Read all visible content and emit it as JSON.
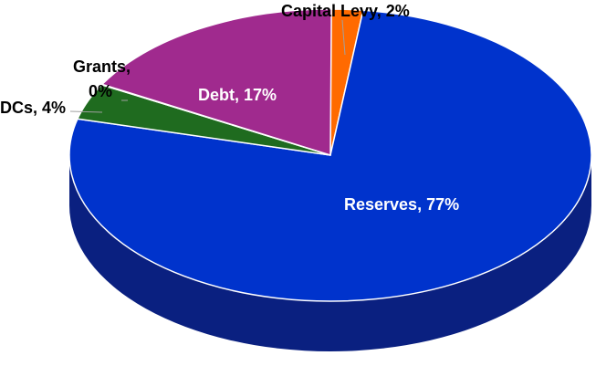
{
  "chart_data": {
    "type": "pie",
    "style": "3d",
    "slices": [
      {
        "name": "Reserves",
        "label": "Reserves, 77%",
        "value": 77,
        "color": "#0033cc",
        "side_color": "#0a2080"
      },
      {
        "name": "DCs",
        "label": "DCs, 4%",
        "value": 4,
        "color": "#1f6b1f",
        "side_color": "#124012"
      },
      {
        "name": "Grants",
        "label_lines": [
          "Grants,",
          "0%"
        ],
        "value": 0,
        "color": "#7a2a8a",
        "side_color": "#4a1856"
      },
      {
        "name": "Debt",
        "label": "Debt, 17%",
        "value": 17,
        "color": "#a02a8e",
        "side_color": "#5c1852"
      },
      {
        "name": "Capital Levy",
        "label": "Capital Levy, 2%",
        "value": 2,
        "color": "#ff6a00",
        "side_color": "#a04000"
      }
    ]
  }
}
